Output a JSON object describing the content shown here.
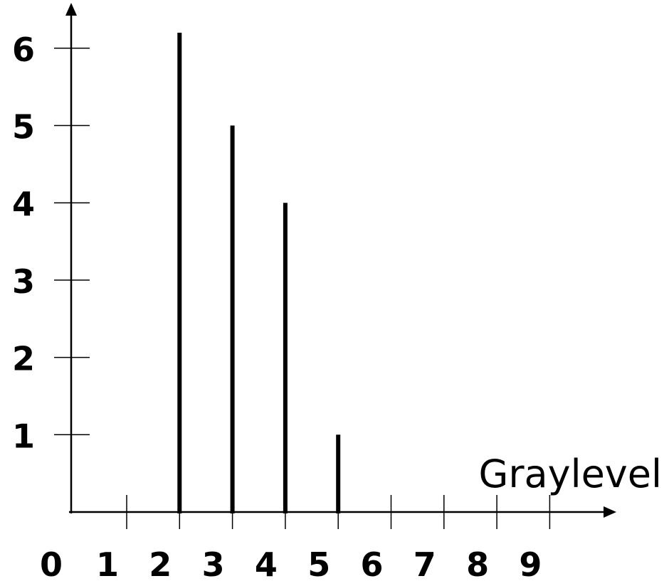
{
  "chart_data": {
    "type": "bar",
    "title": "",
    "xlabel": "Graylevel",
    "ylabel": "",
    "x_ticks": [
      "0",
      "1",
      "2",
      "3",
      "4",
      "5",
      "6",
      "7",
      "8",
      "9"
    ],
    "y_ticks": [
      "1",
      "2",
      "3",
      "4",
      "5",
      "6"
    ],
    "x": [
      2,
      3,
      4,
      5
    ],
    "values": [
      6.2,
      5,
      4,
      1
    ],
    "xlim": [
      0,
      9.8
    ],
    "ylim": [
      0,
      6.7
    ],
    "grid": false,
    "legend": "none"
  }
}
